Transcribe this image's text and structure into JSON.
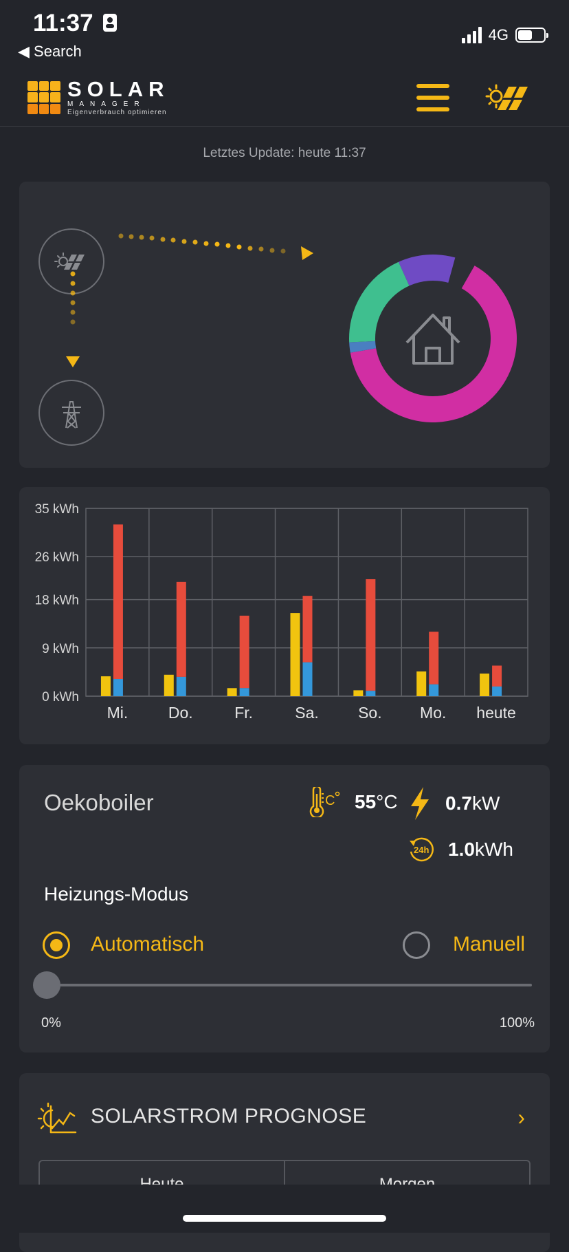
{
  "status": {
    "time": "11:37",
    "back": "◀ Search",
    "network": "4G",
    "battery_level": 0.55
  },
  "logo": {
    "title": "SOLAR",
    "sub1": "MANAGER",
    "sub2": "Eigenverbrauch optimieren",
    "icon": "solar-panel-logo-icon"
  },
  "header": {
    "menu_icon": "hamburger-menu-icon",
    "sun_icon": "sun-panel-icon",
    "accent": "#f5b816"
  },
  "update": {
    "text": "Letztes Update: heute 11:37"
  },
  "flow": {
    "nodes": [
      "solar-node-icon",
      "grid-pylon-icon",
      "house-icon"
    ],
    "donut": [
      {
        "color": "#d12ea3",
        "fraction": 0.64
      },
      {
        "color": "#4a7fc1",
        "fraction": 0.02
      },
      {
        "color": "#3fbf8f",
        "fraction": 0.19
      },
      {
        "color": "#6f4bc4",
        "fraction": 0.11
      }
    ]
  },
  "chart_data": {
    "type": "bar",
    "categories": [
      "Mi.",
      "Do.",
      "Fr.",
      "Sa.",
      "So.",
      "Mo.",
      "heute"
    ],
    "y_tick_labels": [
      "0 kWh",
      "9 kWh",
      "18 kWh",
      "26 kWh",
      "35 kWh"
    ],
    "ylim": [
      0,
      35
    ],
    "series": [
      {
        "color": "#f1c40f",
        "values": [
          3.7,
          4.0,
          1.5,
          15.5,
          1.1,
          4.6,
          4.2
        ]
      },
      {
        "color": "#3498db",
        "values": [
          3.2,
          3.6,
          1.5,
          6.3,
          1.0,
          2.2,
          1.8
        ]
      },
      {
        "color": "#e74c3c",
        "values": [
          28.8,
          17.7,
          13.5,
          12.4,
          20.8,
          9.8,
          3.9
        ]
      }
    ]
  },
  "boiler": {
    "title": "Oekoboiler",
    "temp_value": "55",
    "temp_unit": "°C",
    "power_value": "0.7",
    "power_unit": "kW",
    "energy_value": "1.0",
    "energy_unit": "kWh",
    "temp_icon": "thermometer-celsius-icon",
    "power_icon": "lightning-icon",
    "energy_icon": "24h-icon",
    "mode_title": "Heizungs-Modus",
    "mode_auto": "Automatisch",
    "mode_manual": "Manuell",
    "selected_mode": "Automatisch",
    "slider_min": "0%",
    "slider_max": "100%",
    "slider_value": 0
  },
  "prognose": {
    "title": "SOLARSTROM PROGNOSE",
    "icon": "solar-forecast-chart-icon",
    "tabs": [
      "Heute",
      "Morgen"
    ]
  }
}
